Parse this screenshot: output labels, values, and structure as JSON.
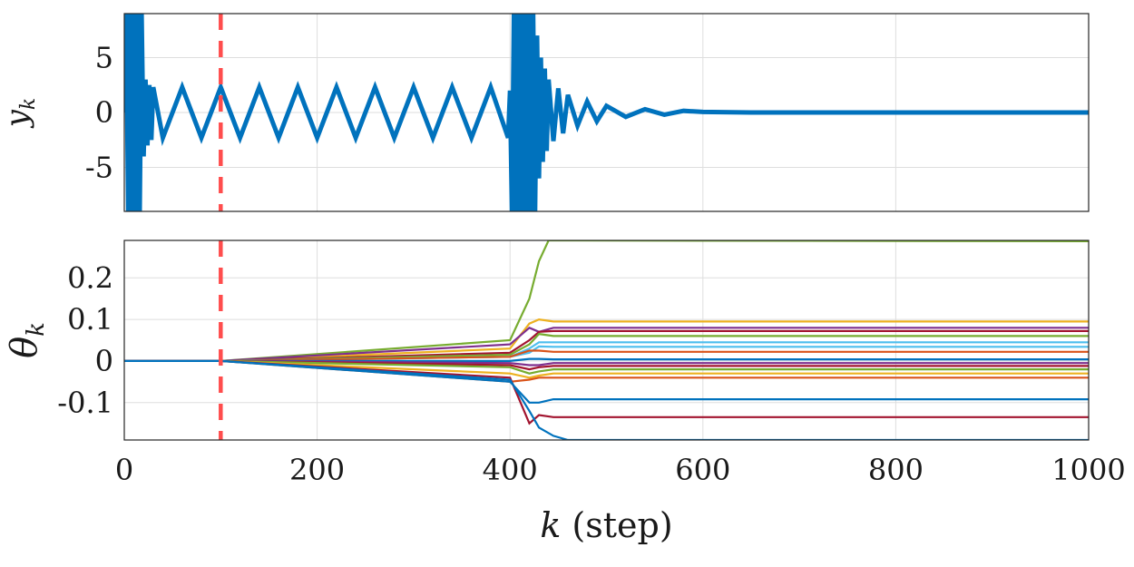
{
  "chart_data": [
    {
      "type": "line",
      "ylabel": "y_k",
      "xlim": [
        0,
        1000
      ],
      "ylim": [
        -9,
        9
      ],
      "xticks": [
        0,
        200,
        400,
        600,
        800,
        1000
      ],
      "yticks": [
        {
          "value": 5,
          "label": "5"
        },
        {
          "value": 0,
          "label": "0"
        },
        {
          "value": -5,
          "label": "-5"
        }
      ],
      "grid": true,
      "vline": {
        "x": 100,
        "color": "#ff4d4d",
        "style": "dashed"
      },
      "series": [
        {
          "color": "#0072bd",
          "x": [
            0,
            2,
            4,
            6,
            8,
            10,
            12,
            14,
            16,
            18,
            20,
            22,
            24,
            26,
            28,
            30,
            40,
            60,
            80,
            100,
            120,
            140,
            160,
            180,
            200,
            220,
            240,
            260,
            280,
            300,
            320,
            340,
            360,
            380,
            398,
            400,
            402,
            404,
            406,
            408,
            410,
            412,
            414,
            416,
            418,
            420,
            422,
            424,
            426,
            428,
            430,
            432,
            434,
            436,
            438,
            440,
            445,
            450,
            455,
            460,
            470,
            480,
            490,
            500,
            520,
            540,
            560,
            580,
            600,
            650,
            700,
            750,
            800,
            850,
            900,
            950,
            1000
          ],
          "y": [
            0,
            9,
            -9,
            9,
            -9,
            9,
            -9,
            9,
            -9,
            9,
            -4,
            3,
            -3,
            2.5,
            -2.5,
            2.3,
            -2.3,
            2.3,
            -2.3,
            2.3,
            -2.3,
            2.3,
            -2.3,
            2.3,
            -2.3,
            2.3,
            -2.3,
            2.3,
            -2.3,
            2.3,
            -2.3,
            2.3,
            -2.3,
            2.3,
            -2.3,
            2,
            -9,
            9,
            -9,
            9,
            -9,
            9,
            -9,
            9,
            -9,
            9,
            -9,
            9,
            -9,
            7,
            -6,
            5,
            -4.5,
            4,
            -3.5,
            3,
            -2.6,
            2.2,
            -1.9,
            1.6,
            -1.2,
            1.0,
            -0.8,
            0.6,
            -0.4,
            0.3,
            -0.2,
            0.15,
            0.05,
            0,
            0,
            0,
            0,
            0,
            0,
            0,
            0
          ]
        }
      ]
    },
    {
      "type": "line",
      "ylabel": "θ_k",
      "xlim": [
        0,
        1000
      ],
      "ylim": [
        -0.19,
        0.29
      ],
      "xticks": [
        0,
        200,
        400,
        600,
        800,
        1000
      ],
      "yticks": [
        {
          "value": 0.2,
          "label": "0.2"
        },
        {
          "value": 0.1,
          "label": "0.1"
        },
        {
          "value": 0,
          "label": "0"
        },
        {
          "value": -0.1,
          "label": "-0.1"
        }
      ],
      "xlabel": "k (step)",
      "grid": true,
      "vline": {
        "x": 100,
        "color": "#ff4d4d",
        "style": "dashed"
      },
      "series": [
        {
          "color": "#77ac30",
          "x": [
            0,
            100,
            400,
            420,
            430,
            440,
            1000
          ],
          "y": [
            0,
            0,
            0.05,
            0.15,
            0.24,
            0.29,
            0.288
          ]
        },
        {
          "color": "#edb120",
          "x": [
            0,
            100,
            400,
            420,
            430,
            445,
            1000
          ],
          "y": [
            0,
            0,
            0.03,
            0.09,
            0.1,
            0.095,
            0.095
          ]
        },
        {
          "color": "#7e2f8e",
          "x": [
            0,
            100,
            400,
            420,
            430,
            445,
            1000
          ],
          "y": [
            0,
            0,
            0.04,
            0.08,
            0.07,
            0.08,
            0.08
          ]
        },
        {
          "color": "#a2142f",
          "x": [
            0,
            100,
            400,
            420,
            430,
            445,
            1000
          ],
          "y": [
            0,
            0,
            0.02,
            0.05,
            0.07,
            0.072,
            0.072
          ]
        },
        {
          "color": "#77ac30",
          "x": [
            0,
            100,
            400,
            420,
            430,
            445,
            1000
          ],
          "y": [
            0,
            0,
            0.015,
            0.04,
            0.065,
            0.06,
            0.06
          ]
        },
        {
          "color": "#4dbeee",
          "x": [
            0,
            100,
            400,
            420,
            430,
            445,
            1000
          ],
          "y": [
            0,
            0,
            0.01,
            0.03,
            0.045,
            0.045,
            0.045
          ]
        },
        {
          "color": "#4dbeee",
          "x": [
            0,
            100,
            400,
            420,
            430,
            445,
            1000
          ],
          "y": [
            0,
            0,
            0.01,
            0.02,
            0.035,
            0.034,
            0.034
          ]
        },
        {
          "color": "#d95319",
          "x": [
            0,
            100,
            400,
            420,
            430,
            445,
            1000
          ],
          "y": [
            0,
            0,
            0.01,
            0.025,
            0.025,
            0.022,
            0.022
          ]
        },
        {
          "color": "#0072bd",
          "x": [
            0,
            100,
            400,
            420,
            430,
            445,
            1000
          ],
          "y": [
            0,
            0,
            0,
            0.005,
            0.005,
            0.004,
            0.004
          ]
        },
        {
          "color": "#7e2f8e",
          "x": [
            0,
            100,
            400,
            420,
            430,
            445,
            1000
          ],
          "y": [
            0,
            0,
            -0.005,
            -0.01,
            -0.01,
            -0.005,
            -0.005
          ]
        },
        {
          "color": "#a2142f",
          "x": [
            0,
            100,
            400,
            420,
            430,
            445,
            1000
          ],
          "y": [
            0,
            0,
            -0.01,
            -0.02,
            -0.015,
            -0.012,
            -0.012
          ]
        },
        {
          "color": "#77ac30",
          "x": [
            0,
            100,
            400,
            420,
            430,
            445,
            1000
          ],
          "y": [
            0,
            0,
            -0.015,
            -0.03,
            -0.025,
            -0.02,
            -0.02
          ]
        },
        {
          "color": "#edb120",
          "x": [
            0,
            100,
            400,
            420,
            430,
            445,
            1000
          ],
          "y": [
            0,
            0,
            -0.03,
            -0.04,
            -0.035,
            -0.03,
            -0.03
          ]
        },
        {
          "color": "#d95319",
          "x": [
            0,
            100,
            400,
            420,
            430,
            445,
            1000
          ],
          "y": [
            0,
            0,
            -0.05,
            -0.045,
            -0.04,
            -0.04,
            -0.04
          ]
        },
        {
          "color": "#0072bd",
          "x": [
            0,
            100,
            400,
            420,
            430,
            445,
            1000
          ],
          "y": [
            0,
            0,
            -0.05,
            -0.1,
            -0.1,
            -0.092,
            -0.092
          ]
        },
        {
          "color": "#a2142f",
          "x": [
            0,
            100,
            400,
            420,
            430,
            445,
            1000
          ],
          "y": [
            0,
            0,
            -0.04,
            -0.15,
            -0.13,
            -0.135,
            -0.135
          ]
        },
        {
          "color": "#0072bd",
          "x": [
            0,
            100,
            400,
            420,
            430,
            445,
            460,
            1000
          ],
          "y": [
            0,
            0,
            -0.045,
            -0.12,
            -0.16,
            -0.18,
            -0.19,
            -0.19
          ]
        }
      ]
    }
  ]
}
